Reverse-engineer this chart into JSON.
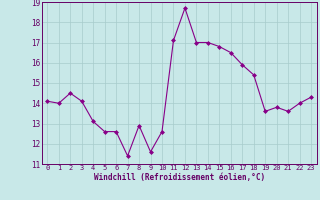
{
  "x": [
    0,
    1,
    2,
    3,
    4,
    5,
    6,
    7,
    8,
    9,
    10,
    11,
    12,
    13,
    14,
    15,
    16,
    17,
    18,
    19,
    20,
    21,
    22,
    23
  ],
  "y": [
    14.1,
    14.0,
    14.5,
    14.1,
    13.1,
    12.6,
    12.6,
    11.4,
    12.9,
    11.6,
    12.6,
    17.1,
    18.7,
    17.0,
    17.0,
    16.8,
    16.5,
    15.9,
    15.4,
    13.6,
    13.8,
    13.6,
    14.0,
    14.3
  ],
  "ylim": [
    11,
    19
  ],
  "yticks": [
    11,
    12,
    13,
    14,
    15,
    16,
    17,
    18,
    19
  ],
  "xticks": [
    0,
    1,
    2,
    3,
    4,
    5,
    6,
    7,
    8,
    9,
    10,
    11,
    12,
    13,
    14,
    15,
    16,
    17,
    18,
    19,
    20,
    21,
    22,
    23
  ],
  "xlabel": "Windchill (Refroidissement éolien,°C)",
  "line_color": "#880088",
  "marker": "D",
  "marker_size": 2.0,
  "bg_color": "#c8e8e8",
  "grid_color": "#a8cccc",
  "font_color": "#660066"
}
